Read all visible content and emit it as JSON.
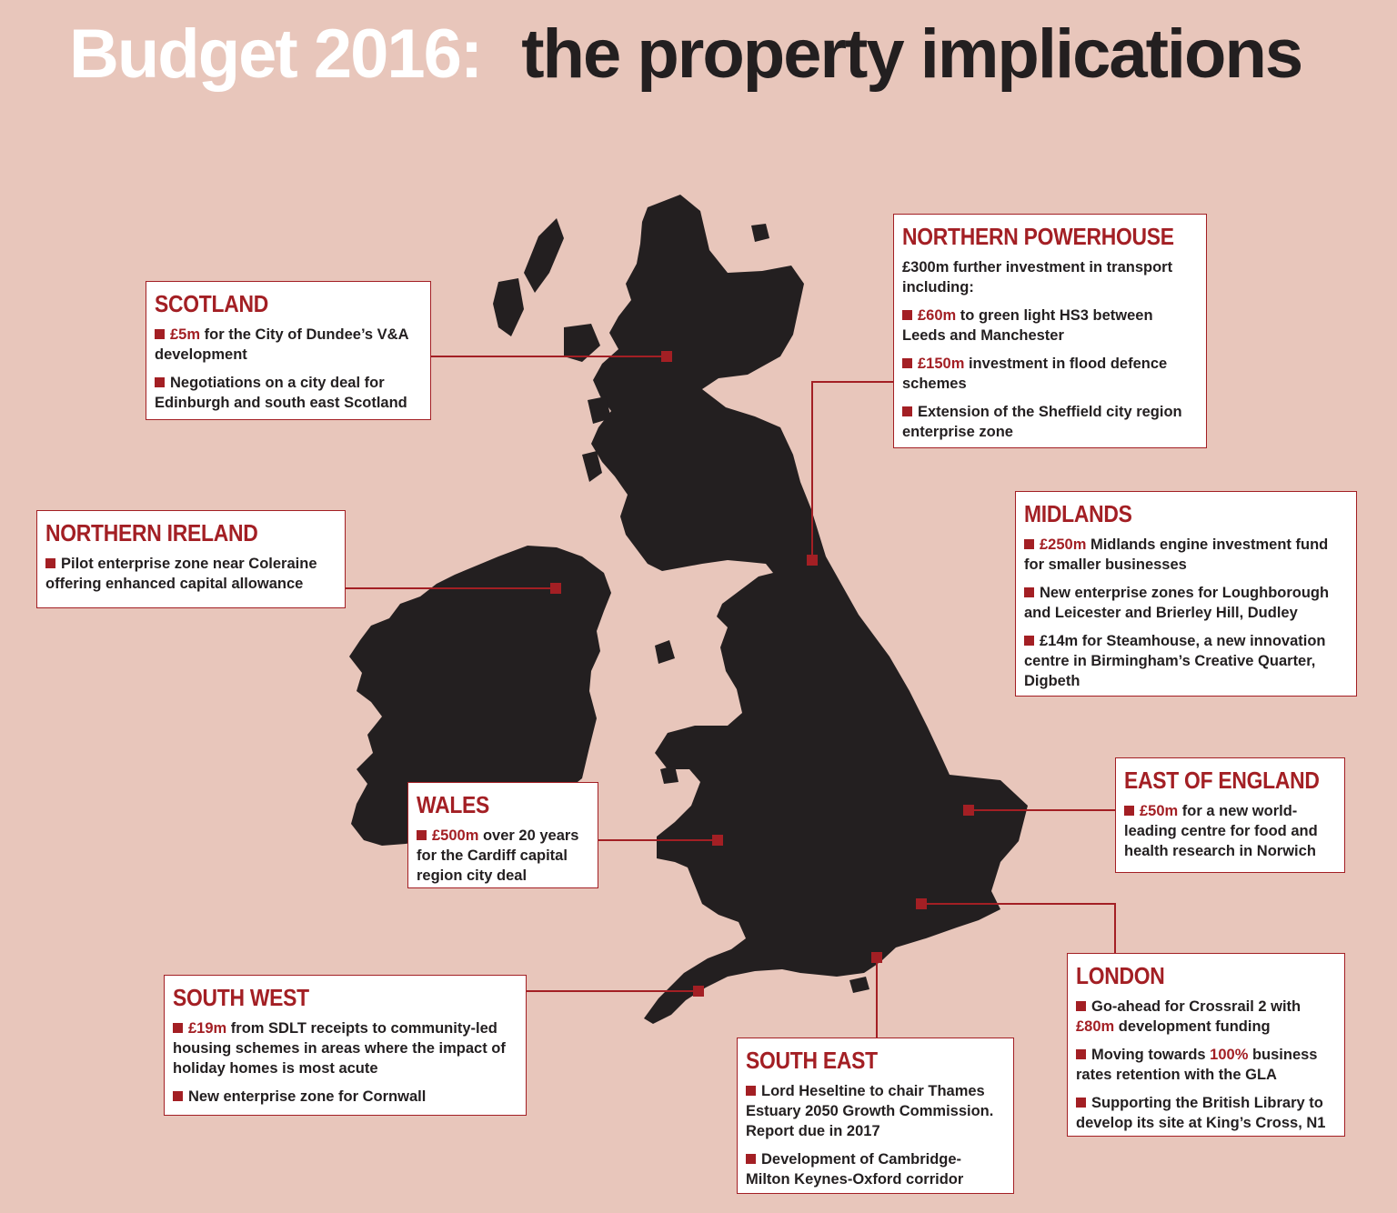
{
  "title": {
    "part1": "Budget 2016:",
    "part2": "the property implications"
  },
  "colors": {
    "background": "#e8c6bb",
    "accent": "#a31f24",
    "land": "#231f20"
  },
  "regions": {
    "scotland": {
      "name": "SCOTLAND",
      "items": [
        {
          "highlight": "£5m",
          "text": " for the City of Dundee’s V&A development"
        },
        {
          "highlight": "",
          "text": "Negotiations on a city deal for Edinburgh and south east Scotland"
        }
      ]
    },
    "northern_ireland": {
      "name": "NORTHERN IRELAND",
      "items": [
        {
          "highlight": "",
          "text": "Pilot enterprise zone near Coleraine offering enhanced capital allowance"
        }
      ]
    },
    "northern_powerhouse": {
      "name": "NORTHERN POWERHOUSE",
      "intro": "£300m further investment in transport including:",
      "items": [
        {
          "highlight": "£60m",
          "text": " to green light HS3 between Leeds and Manchester"
        },
        {
          "highlight": "£150m",
          "text": " investment in flood defence schemes"
        },
        {
          "highlight": "",
          "text": "Extension of the Sheffield city region enterprise zone"
        }
      ]
    },
    "midlands": {
      "name": "MIDLANDS",
      "items": [
        {
          "highlight": "£250m",
          "text": " Midlands engine investment fund for smaller businesses"
        },
        {
          "highlight": "",
          "text": "New enterprise zones for Loughborough and Leicester and Brierley Hill, Dudley"
        },
        {
          "highlight": "",
          "text": "£14m for Steamhouse, a new innovation centre in Birmingham’s Creative Quarter, Digbeth"
        }
      ]
    },
    "wales": {
      "name": "WALES",
      "items": [
        {
          "highlight": "£500m",
          "text": " over 20 years for the Cardiff capital region city deal"
        }
      ]
    },
    "east_of_england": {
      "name": "EAST OF ENGLAND",
      "items": [
        {
          "highlight": "£50m",
          "text": " for a new world-leading centre for food and health research in Norwich"
        }
      ]
    },
    "south_west": {
      "name": "SOUTH WEST",
      "items": [
        {
          "highlight": "£19m",
          "text": " from SDLT receipts to community-led housing schemes in areas where the impact of holiday homes is most acute"
        },
        {
          "highlight": "",
          "text": "New enterprise zone for Cornwall"
        }
      ]
    },
    "south_east": {
      "name": "SOUTH EAST",
      "items": [
        {
          "highlight": "",
          "text": "Lord Heseltine to chair Thames Estuary 2050 Growth Commission. Report due in 2017"
        },
        {
          "highlight": "",
          "text": "Development of Cambridge-Milton Keynes-Oxford corridor"
        }
      ]
    },
    "london": {
      "name": "LONDON",
      "items": [
        {
          "pre": "Go-ahead for Crossrail 2 with ",
          "highlight": "£80m",
          "text": " development funding"
        },
        {
          "pre": "Moving towards ",
          "highlight": "100%",
          "text": " business rates retention with the GLA"
        },
        {
          "pre": "",
          "highlight": "",
          "text": "Supporting the British Library to develop its site at King’s Cross, N1"
        }
      ]
    }
  }
}
